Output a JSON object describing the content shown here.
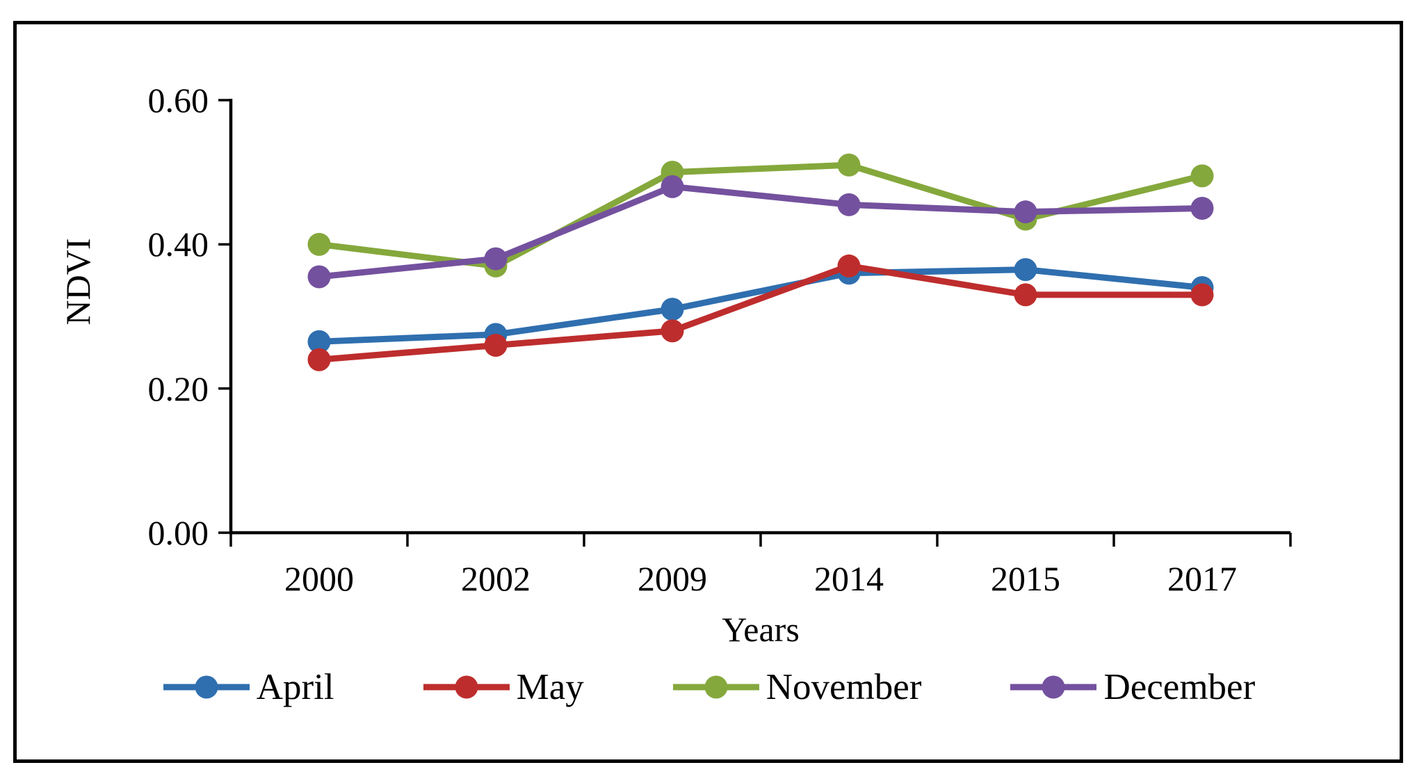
{
  "chart_data": {
    "type": "line",
    "title": "",
    "xlabel": "Years",
    "ylabel": "NDVI",
    "categories": [
      "2000",
      "2002",
      "2009",
      "2014",
      "2015",
      "2017"
    ],
    "y_ticks": [
      0.0,
      0.2,
      0.4,
      0.6
    ],
    "y_tick_labels": [
      "0.00",
      "0.20",
      "0.40",
      "0.60"
    ],
    "ylim": [
      0.0,
      0.6
    ],
    "grid": false,
    "legend_position": "bottom",
    "marker": "circle",
    "series": [
      {
        "name": "April",
        "color": "#2F6FAF",
        "values": [
          0.265,
          0.275,
          0.31,
          0.36,
          0.365,
          0.34
        ]
      },
      {
        "name": "May",
        "color": "#BE2D2D",
        "values": [
          0.24,
          0.26,
          0.28,
          0.37,
          0.33,
          0.33
        ]
      },
      {
        "name": "November",
        "color": "#85A83C",
        "values": [
          0.4,
          0.37,
          0.5,
          0.51,
          0.435,
          0.495
        ]
      },
      {
        "name": "December",
        "color": "#74519E",
        "values": [
          0.355,
          0.38,
          0.48,
          0.455,
          0.445,
          0.45
        ]
      }
    ],
    "axis_color": "#000000",
    "text_color": "#000000"
  }
}
